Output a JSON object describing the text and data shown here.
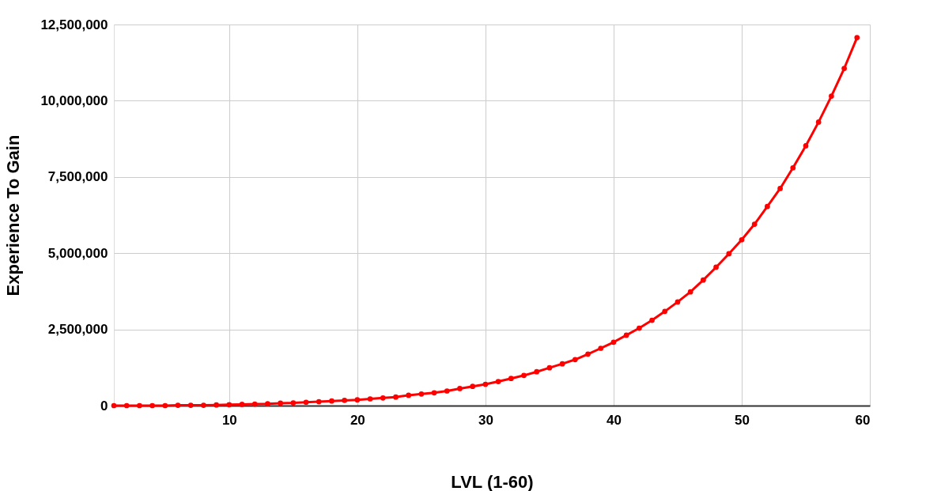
{
  "chart_data": {
    "type": "line",
    "xlabel": "LVL (1-60)",
    "ylabel": "Experience To Gain",
    "x": [
      1,
      2,
      3,
      4,
      5,
      6,
      7,
      8,
      9,
      10,
      11,
      12,
      13,
      14,
      15,
      16,
      17,
      18,
      19,
      20,
      21,
      22,
      23,
      24,
      25,
      26,
      27,
      28,
      29,
      30,
      31,
      32,
      33,
      34,
      35,
      36,
      37,
      38,
      39,
      40,
      41,
      42,
      43,
      44,
      45,
      46,
      47,
      48,
      49,
      50,
      51,
      52,
      53,
      54,
      55,
      56,
      57,
      58,
      59
    ],
    "series": [
      {
        "color": "#ff0000",
        "values": [
          0,
          0,
          0,
          0,
          0,
          10000,
          10000,
          10000,
          20000,
          30000,
          40000,
          50000,
          60000,
          80000,
          90000,
          110000,
          130000,
          150000,
          170000,
          190000,
          220000,
          250000,
          280000,
          340000,
          380000,
          420000,
          480000,
          560000,
          630000,
          700000,
          790000,
          890000,
          990000,
          1110000,
          1240000,
          1370000,
          1510000,
          1690000,
          1880000,
          2080000,
          2310000,
          2540000,
          2800000,
          3090000,
          3400000,
          3730000,
          4120000,
          4540000,
          4980000,
          5440000,
          5950000,
          6530000,
          7120000,
          7800000,
          8520000,
          9300000,
          10150000,
          11060000,
          12070000
        ]
      }
    ],
    "xlim": [
      1,
      60
    ],
    "xticks": [
      10,
      20,
      30,
      40,
      50,
      60
    ],
    "ylim": [
      0,
      12500000
    ],
    "yticks": [
      0,
      {
        "value": 2500000,
        "label": "2,500,000"
      },
      {
        "value": 5000000,
        "label": "5,000,000"
      },
      {
        "value": 7500000,
        "label": "7,500,000"
      },
      {
        "value": 10000000,
        "label": "10,000,000"
      },
      {
        "value": 12500000,
        "label": "12,500,000"
      }
    ],
    "grid": true,
    "marker": "circle",
    "line_style": "solid",
    "legend": false
  }
}
